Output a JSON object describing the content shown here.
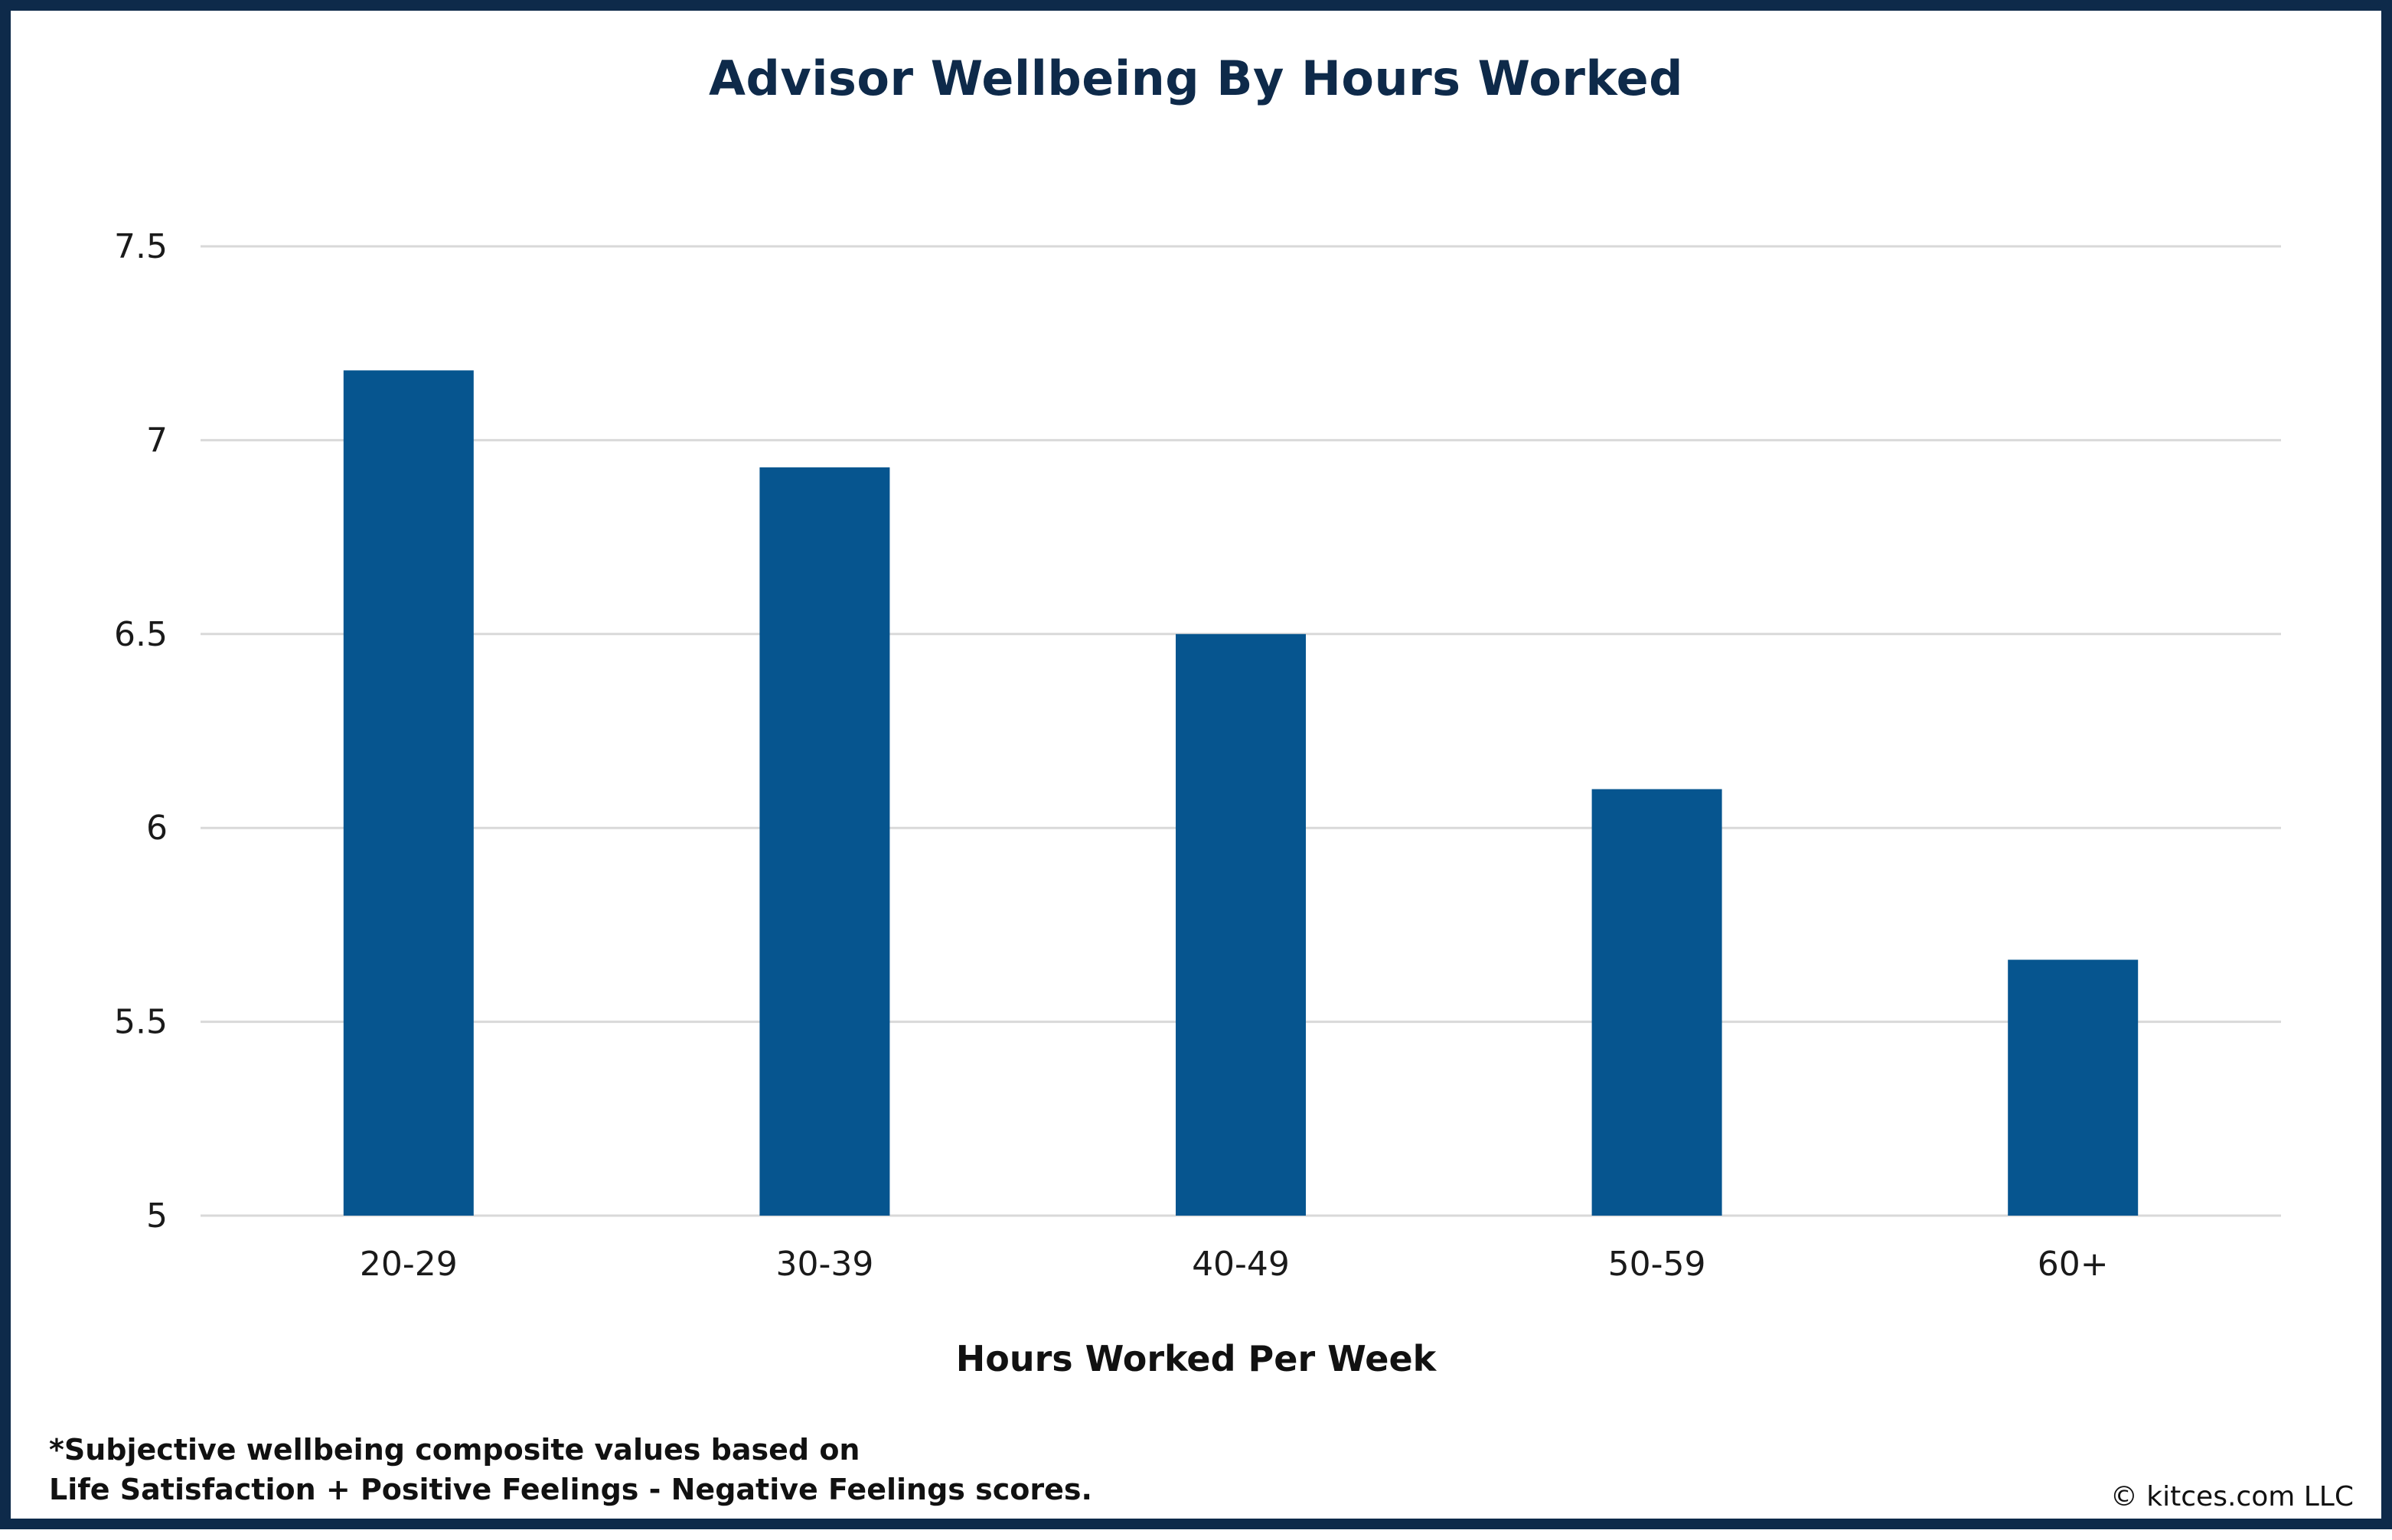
{
  "chart_data": {
    "type": "bar",
    "title": "Advisor Wellbeing By Hours Worked",
    "xlabel": "Hours Worked Per Week",
    "ylabel": "",
    "categories": [
      "20-29",
      "30-39",
      "40-49",
      "50-59",
      "60+"
    ],
    "values": [
      7.18,
      6.93,
      6.5,
      6.1,
      5.66
    ],
    "ylim": [
      5,
      7.5
    ],
    "yticks": [
      "5",
      "5.5",
      "6",
      "6.5",
      "7",
      "7.5"
    ],
    "ytick_values": [
      5,
      5.5,
      6,
      6.5,
      7,
      7.5
    ],
    "grid": true,
    "bar_color": "#06558f",
    "grid_color": "#d9d9d9"
  },
  "footnote": {
    "line1": "*Subjective wellbeing composite values based on",
    "line2": "Life Satisfaction + Positive Feelings - Negative Feelings scores."
  },
  "credit": "© kitces.com LLC",
  "colors": {
    "border": "#0e2a4a",
    "title": "#0e2a4a"
  }
}
